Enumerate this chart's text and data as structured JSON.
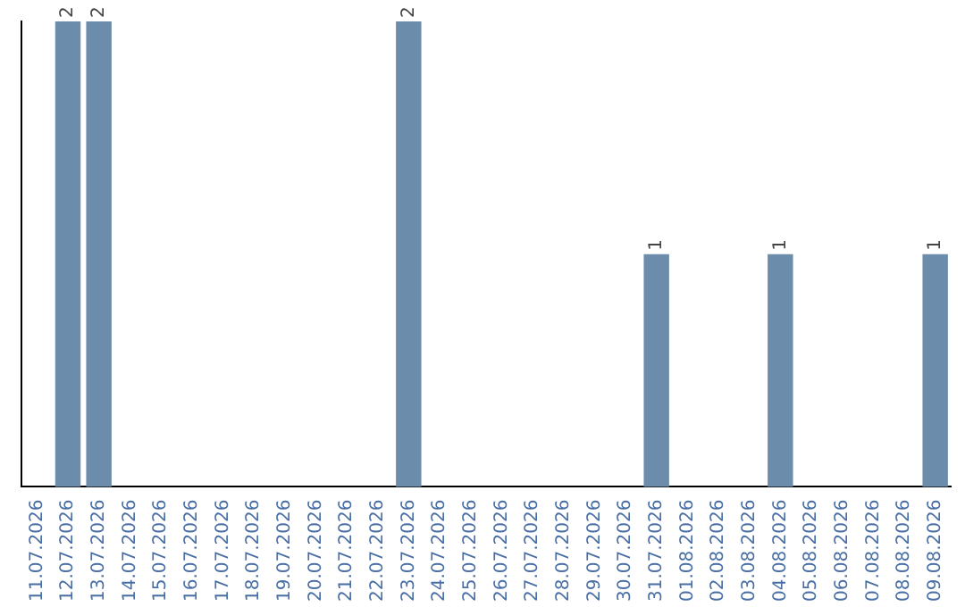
{
  "chart_data": {
    "type": "bar",
    "categories": [
      "11.07.2026",
      "12.07.2026",
      "13.07.2026",
      "14.07.2026",
      "15.07.2026",
      "16.07.2026",
      "17.07.2026",
      "18.07.2026",
      "19.07.2026",
      "20.07.2026",
      "21.07.2026",
      "22.07.2026",
      "23.07.2026",
      "24.07.2026",
      "25.07.2026",
      "26.07.2026",
      "27.07.2026",
      "28.07.2026",
      "29.07.2026",
      "30.07.2026",
      "31.07.2026",
      "01.08.2026",
      "02.08.2026",
      "03.08.2026",
      "04.08.2026",
      "05.08.2026",
      "06.08.2026",
      "07.08.2026",
      "08.08.2026",
      "09.08.2026"
    ],
    "values": [
      0,
      2,
      2,
      0,
      0,
      0,
      0,
      0,
      0,
      0,
      0,
      0,
      2,
      0,
      0,
      0,
      0,
      0,
      0,
      0,
      1,
      0,
      0,
      0,
      1,
      0,
      0,
      0,
      0,
      1
    ],
    "value_labels": [
      null,
      "2",
      "2",
      null,
      null,
      null,
      null,
      null,
      null,
      null,
      null,
      null,
      "2",
      null,
      null,
      null,
      null,
      null,
      null,
      null,
      "1",
      null,
      null,
      null,
      "1",
      null,
      null,
      null,
      null,
      "1"
    ],
    "color": "#6b8cab",
    "ylim": [
      0,
      2
    ],
    "grid": false,
    "legend": false,
    "tick_labels": "x"
  }
}
